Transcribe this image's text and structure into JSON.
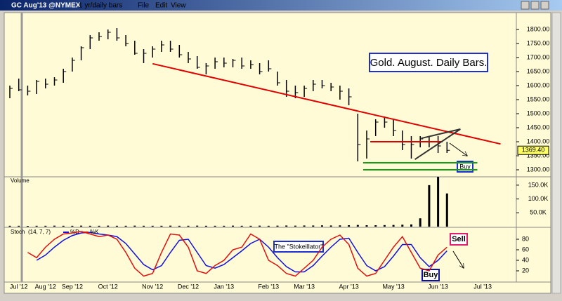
{
  "window": {
    "title": "GC Aug'13 @NYMEX",
    "interval": "1 yr/daily bars",
    "menu": [
      "File",
      "Edit",
      "View"
    ]
  },
  "chart_data": [
    {
      "type": "ohlc",
      "categories": [
        null,
        "Jul '12",
        null,
        null,
        "Aug '12",
        null,
        null,
        "Sep '12",
        null,
        null,
        null,
        "Oct '12",
        null,
        null,
        null,
        null,
        "Nov '12",
        null,
        null,
        null,
        "Dec '12",
        null,
        null,
        null,
        "Jan '13",
        null,
        null,
        null,
        null,
        "Feb '13",
        null,
        null,
        null,
        "Mar '13",
        null,
        null,
        null,
        null,
        "Apr '13",
        null,
        null,
        null,
        null,
        "May '13",
        null,
        null,
        null,
        null,
        "Jun '13",
        null,
        null,
        null,
        null,
        "Jul '13",
        null
      ],
      "high": [
        1600,
        1625,
        1600,
        1620,
        1625,
        1630,
        1660,
        1700,
        1740,
        1780,
        1790,
        1800,
        1805,
        1780,
        1760,
        1730,
        1740,
        1760,
        1760,
        1745,
        1720,
        1705,
        1680,
        1700,
        1700,
        1695,
        1700,
        1690,
        1680,
        1690,
        1650,
        1620,
        1600,
        1600,
        1620,
        1620,
        1610,
        1600,
        1590,
        1500,
        1440,
        1480,
        1490,
        1480,
        1440,
        1420,
        1420,
        1420,
        1420,
        1400,
        null,
        null,
        null,
        null,
        null
      ],
      "low": [
        1555,
        1580,
        1565,
        1570,
        1590,
        1600,
        1610,
        1650,
        1690,
        1730,
        1760,
        1765,
        1760,
        1740,
        1710,
        1680,
        1700,
        1720,
        1720,
        1700,
        1680,
        1660,
        1640,
        1660,
        1665,
        1665,
        1660,
        1660,
        1640,
        1650,
        1600,
        1560,
        1555,
        1560,
        1580,
        1590,
        1580,
        1550,
        1530,
        1330,
        1340,
        1420,
        1450,
        1420,
        1370,
        1340,
        1380,
        1380,
        1360,
        1360,
        null,
        null,
        null,
        null,
        null
      ],
      "close": [
        1590,
        1585,
        1580,
        1615,
        1605,
        1620,
        1650,
        1690,
        1735,
        1770,
        1775,
        1790,
        1770,
        1750,
        1715,
        1715,
        1730,
        1745,
        1730,
        1710,
        1695,
        1665,
        1670,
        1685,
        1680,
        1690,
        1670,
        1675,
        1650,
        1660,
        1610,
        1580,
        1575,
        1590,
        1605,
        1600,
        1595,
        1580,
        1560,
        1390,
        1410,
        1470,
        1470,
        1440,
        1390,
        1390,
        1410,
        1400,
        1385,
        1369.4,
        null,
        null,
        null,
        null,
        null
      ],
      "last_value": {
        "value": 1369.4,
        "label": "1369.40"
      },
      "ylim": [
        1280,
        1850
      ],
      "yticks": [
        {
          "value": 1300,
          "label": "1300.00"
        },
        {
          "value": 1350,
          "label": "1350.00"
        },
        {
          "value": 1400,
          "label": "1400.00"
        },
        {
          "value": 1450,
          "label": "1450.00"
        },
        {
          "value": 1500,
          "label": "1500.00"
        },
        {
          "value": 1550,
          "label": "1550.00"
        },
        {
          "value": 1600,
          "label": "1600.00"
        },
        {
          "value": 1650,
          "label": "1650.00"
        },
        {
          "value": 1700,
          "label": "1700.00"
        },
        {
          "value": 1750,
          "label": "1750.00"
        },
        {
          "value": 1800,
          "label": "1800.00"
        }
      ],
      "trend_lines": [
        {
          "color": "#e00000",
          "points": [
            [
              16,
              1678
            ],
            [
              55,
              1392
            ]
          ]
        },
        {
          "color": "#e00000",
          "points": [
            [
              40.4,
              1400
            ],
            [
              48.5,
              1400
            ]
          ]
        },
        {
          "color": "#11a011",
          "points": [
            [
              39.6,
              1325
            ],
            [
              52.4,
              1325
            ]
          ]
        },
        {
          "color": "#11a011",
          "points": [
            [
              39.6,
              1300
            ],
            [
              52.4,
              1300
            ]
          ]
        },
        {
          "color": "#333333",
          "points": [
            [
              45.4,
              1337
            ],
            [
              50.5,
              1445
            ]
          ]
        },
        {
          "color": "#333333",
          "points": [
            [
              46.1,
              1412
            ],
            [
              50.5,
              1445
            ]
          ]
        }
      ],
      "annotations": [
        "Gold. August. Daily Bars.",
        "Buy"
      ]
    },
    {
      "type": "bar",
      "title": "Volume",
      "values": [
        3000,
        3000,
        2500,
        3000,
        3000,
        3500,
        3000,
        3000,
        3500,
        3000,
        3000,
        3500,
        3000,
        3000,
        3500,
        3000,
        3000,
        3000,
        3500,
        3000,
        3000,
        3500,
        3000,
        3000,
        3000,
        3500,
        3000,
        3000,
        3500,
        3000,
        3500,
        4000,
        3500,
        4000,
        4000,
        4500,
        4000,
        4500,
        5000,
        6000,
        5000,
        5000,
        5500,
        6000,
        7000,
        8000,
        30000,
        150000,
        180000,
        120000,
        null,
        null,
        null,
        null,
        null
      ],
      "color": "#000000",
      "ylim": [
        0,
        170000
      ],
      "yticks": [
        {
          "value": 50000,
          "label": "50.0K"
        },
        {
          "value": 100000,
          "label": "100.0K"
        },
        {
          "value": 150000,
          "label": "150.0K"
        }
      ]
    },
    {
      "type": "line",
      "title": "Stoch",
      "subtitle": "(14, 7, 7)",
      "series": [
        {
          "name": "%D",
          "color": "#1010e0",
          "values": [
            null,
            null,
            null,
            40,
            50,
            65,
            78,
            87,
            92,
            93,
            90,
            88,
            85,
            72,
            52,
            32,
            22,
            30,
            55,
            78,
            80,
            55,
            30,
            25,
            32,
            45,
            58,
            72,
            80,
            65,
            45,
            28,
            18,
            18,
            30,
            48,
            65,
            80,
            82,
            55,
            30,
            20,
            28,
            48,
            70,
            70,
            45,
            28,
            40,
            58,
            null,
            null,
            null,
            null,
            null
          ]
        },
        {
          "name": "%K",
          "color": "#e01010",
          "values": [
            null,
            null,
            55,
            45,
            65,
            80,
            90,
            92,
            95,
            90,
            85,
            88,
            80,
            55,
            25,
            10,
            15,
            55,
            90,
            88,
            65,
            20,
            15,
            30,
            40,
            60,
            65,
            90,
            80,
            40,
            30,
            15,
            10,
            25,
            40,
            65,
            80,
            88,
            70,
            25,
            10,
            15,
            40,
            65,
            85,
            55,
            25,
            20,
            50,
            65,
            null,
            null,
            null,
            null,
            null
          ]
        }
      ],
      "ylim": [
        0,
        100
      ],
      "yticks": [
        20,
        40,
        60,
        80
      ],
      "annotations": [
        "The \"Stokeillator\"",
        "Sell",
        "Buy"
      ]
    }
  ]
}
